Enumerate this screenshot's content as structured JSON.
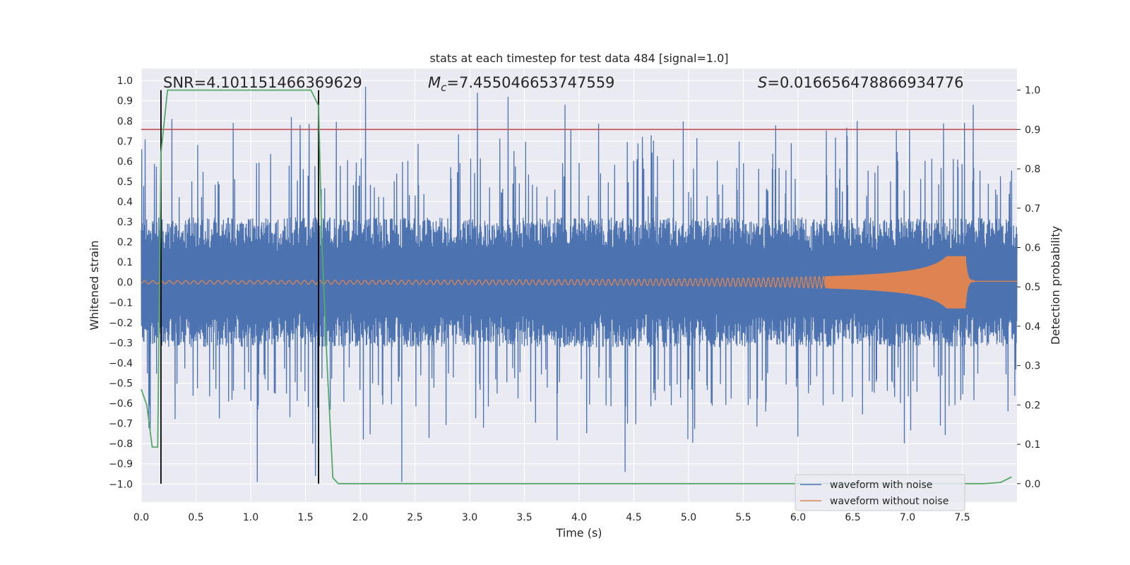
{
  "chart_data": {
    "type": "line",
    "title": "stats at each timestep for test data 484 [signal=1.0]",
    "xlabel": "Time (s)",
    "ylabel_left": "Whitened strain",
    "ylabel_right": "Detection probability",
    "xlim": [
      0.0,
      8.0
    ],
    "ylim_left": [
      -1.09,
      1.06
    ],
    "ylim_right": [
      -0.047,
      1.055
    ],
    "x_ticks": [
      0.0,
      0.5,
      1.0,
      1.5,
      2.0,
      2.5,
      3.0,
      3.5,
      4.0,
      4.5,
      5.0,
      5.5,
      6.0,
      6.5,
      7.0,
      7.5
    ],
    "x_tick_labels": [
      "0.0",
      "0.5",
      "1.0",
      "1.5",
      "2.0",
      "2.5",
      "3.0",
      "3.5",
      "4.0",
      "4.5",
      "5.0",
      "5.5",
      "6.0",
      "6.5",
      "7.0",
      "7.5"
    ],
    "y_left_ticks": [
      1.0,
      0.9,
      0.8,
      0.7,
      0.6,
      0.5,
      0.4,
      0.3,
      0.2,
      0.1,
      0.0,
      -0.1,
      -0.2,
      -0.3,
      -0.4,
      -0.5,
      -0.6,
      -0.7,
      -0.8,
      -0.9,
      -1.0
    ],
    "y_left_tick_labels": [
      "1.0",
      "0.9",
      "0.8",
      "0.7",
      "0.6",
      "0.5",
      "0.4",
      "0.3",
      "0.2",
      "0.1",
      "0.0",
      "−0.1",
      "−0.2",
      "−0.3",
      "−0.4",
      "−0.5",
      "−0.6",
      "−0.7",
      "−0.8",
      "−0.9",
      "−1.0"
    ],
    "y_right_ticks": [
      1.0,
      0.9,
      0.8,
      0.7,
      0.6,
      0.5,
      0.4,
      0.3,
      0.2,
      0.1,
      0.0
    ],
    "y_right_tick_labels": [
      "1.0",
      "0.9",
      "0.8",
      "0.7",
      "0.6",
      "0.5",
      "0.4",
      "0.3",
      "0.2",
      "0.1",
      "0.0"
    ],
    "grid": true,
    "annotations": {
      "snr": "SNR=4.101151466369629",
      "mc_symbol": "M",
      "mc_sub": "c",
      "mc_value": "=7.455046653747559",
      "s_symbol": "S",
      "s_value": "=0.016656478866934776"
    },
    "threshold": {
      "axis": "right",
      "value": 0.9,
      "color": "#c44e52"
    },
    "vertical_markers": {
      "x": [
        0.18,
        1.62
      ],
      "color": "#000000"
    },
    "series": [
      {
        "name": "waveform with noise",
        "axis": "left",
        "color": "#4c72b0",
        "description": "whitened noisy strain, amplitude mostly within ±0.5 with spikes to about ±1.0",
        "core_envelope": 0.28,
        "max_spike": 0.98,
        "notable_spikes": [
          {
            "x": 0.28,
            "y": 0.81
          },
          {
            "x": 0.84,
            "y": 0.79
          },
          {
            "x": 1.06,
            "y": -0.99
          },
          {
            "x": 1.37,
            "y": 0.82
          },
          {
            "x": 1.45,
            "y": 0.78
          },
          {
            "x": 1.59,
            "y": -0.96
          },
          {
            "x": 2.05,
            "y": 0.97
          },
          {
            "x": 2.38,
            "y": -0.99
          },
          {
            "x": 3.07,
            "y": 0.94
          },
          {
            "x": 3.35,
            "y": 0.92
          },
          {
            "x": 3.87,
            "y": 0.88
          },
          {
            "x": 4.42,
            "y": -0.94
          },
          {
            "x": 6.54,
            "y": 0.8
          },
          {
            "x": 7.52,
            "y": 0.79
          },
          {
            "x": 7.6,
            "y": 0.88
          }
        ]
      },
      {
        "name": "waveform without noise",
        "axis": "left",
        "color": "#dd8452",
        "description": "chirp signal: small oscillation around 0 growing in amplitude and frequency, merging near t=7.53 s then ringdown",
        "start_amplitude": 0.008,
        "peak_amplitude": 0.13,
        "merger_time": 7.53
      },
      {
        "name": "detection probability",
        "axis": "right",
        "color": "#55a868",
        "x": [
          0.0,
          0.05,
          0.1,
          0.12,
          0.15,
          0.18,
          0.24,
          0.3,
          0.5,
          1.0,
          1.5,
          1.55,
          1.62,
          1.65,
          1.7,
          1.75,
          1.8,
          2.0,
          3.0,
          4.0,
          5.0,
          6.0,
          7.0,
          7.7,
          7.85,
          7.95
        ],
        "y": [
          0.24,
          0.2,
          0.093,
          0.093,
          0.093,
          0.84,
          1.0,
          1.0,
          1.0,
          1.0,
          1.0,
          1.0,
          0.96,
          0.61,
          0.29,
          0.015,
          0.0,
          0.0,
          0.0,
          0.0,
          0.0,
          0.0,
          0.0,
          0.0,
          0.003,
          0.017
        ]
      }
    ],
    "legend": {
      "location": "lower-right",
      "entries": [
        {
          "label": "waveform with noise",
          "color": "#4c72b0"
        },
        {
          "label": "waveform without noise",
          "color": "#dd8452"
        }
      ]
    }
  }
}
